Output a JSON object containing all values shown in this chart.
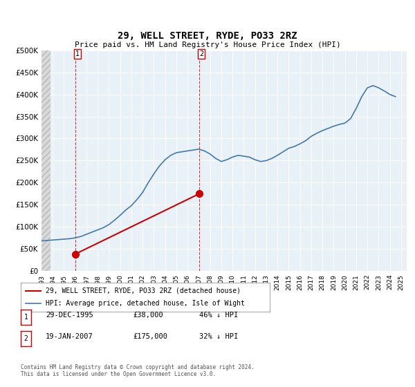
{
  "title": "29, WELL STREET, RYDE, PO33 2RZ",
  "subtitle": "Price paid vs. HM Land Registry's House Price Index (HPI)",
  "transactions": [
    {
      "date_num": 1995.99,
      "price": 38000,
      "label": "1",
      "date_str": "29-DEC-1995"
    },
    {
      "date_num": 2007.05,
      "price": 175000,
      "label": "2",
      "date_str": "19-JAN-2007"
    }
  ],
  "ylim": [
    0,
    500000
  ],
  "yticks": [
    0,
    50000,
    100000,
    150000,
    200000,
    250000,
    300000,
    350000,
    400000,
    450000,
    500000
  ],
  "ytick_labels": [
    "£0",
    "£50K",
    "£100K",
    "£150K",
    "£200K",
    "£250K",
    "£300K",
    "£350K",
    "£400K",
    "£450K",
    "£500K"
  ],
  "xlim_min": 1993.0,
  "xlim_max": 2025.5,
  "property_color": "#cc0000",
  "hpi_color": "#4477aa",
  "background_color": "#e8f0f8",
  "hatch_color": "#c8c8c8",
  "legend_label_property": "29, WELL STREET, RYDE, PO33 2RZ (detached house)",
  "legend_label_hpi": "HPI: Average price, detached house, Isle of Wight",
  "footer": "Contains HM Land Registry data © Crown copyright and database right 2024.\nThis data is licensed under the Open Government Licence v3.0.",
  "table_rows": [
    {
      "label": "1",
      "date": "29-DEC-1995",
      "price": "£38,000",
      "hpi": "46% ↓ HPI"
    },
    {
      "label": "2",
      "date": "19-JAN-2007",
      "price": "£175,000",
      "hpi": "32% ↓ HPI"
    }
  ],
  "hpi_data_x": [
    1993.0,
    1993.5,
    1994.0,
    1994.5,
    1995.0,
    1995.5,
    1996.0,
    1996.5,
    1997.0,
    1997.5,
    1998.0,
    1998.5,
    1999.0,
    1999.5,
    2000.0,
    2000.5,
    2001.0,
    2001.5,
    2002.0,
    2002.5,
    2003.0,
    2003.5,
    2004.0,
    2004.5,
    2005.0,
    2005.5,
    2006.0,
    2006.5,
    2007.0,
    2007.5,
    2008.0,
    2008.5,
    2009.0,
    2009.5,
    2010.0,
    2010.5,
    2011.0,
    2011.5,
    2012.0,
    2012.5,
    2013.0,
    2013.5,
    2014.0,
    2014.5,
    2015.0,
    2015.5,
    2016.0,
    2016.5,
    2017.0,
    2017.5,
    2018.0,
    2018.5,
    2019.0,
    2019.5,
    2020.0,
    2020.5,
    2021.0,
    2021.5,
    2022.0,
    2022.5,
    2023.0,
    2023.5,
    2024.0,
    2024.5
  ],
  "hpi_data_y": [
    68000,
    69000,
    70000,
    71000,
    72000,
    73000,
    75000,
    78000,
    83000,
    88000,
    93000,
    98000,
    105000,
    115000,
    126000,
    138000,
    148000,
    162000,
    178000,
    200000,
    220000,
    238000,
    252000,
    262000,
    268000,
    270000,
    272000,
    274000,
    276000,
    272000,
    265000,
    255000,
    248000,
    252000,
    258000,
    262000,
    260000,
    258000,
    252000,
    248000,
    250000,
    255000,
    262000,
    270000,
    278000,
    282000,
    288000,
    295000,
    305000,
    312000,
    318000,
    323000,
    328000,
    332000,
    335000,
    345000,
    368000,
    395000,
    415000,
    420000,
    415000,
    408000,
    400000,
    395000
  ],
  "property_line_x": [
    1995.99,
    2007.05
  ],
  "property_line_y": [
    38000,
    175000
  ]
}
